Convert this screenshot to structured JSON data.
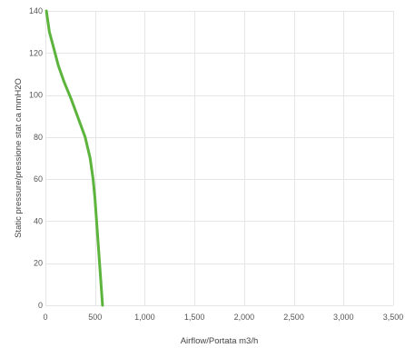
{
  "chart_data": {
    "type": "line",
    "title": "",
    "xlabel": "Airflow/Portata m3/h",
    "ylabel": "Static pressure/pressione stat ca mmH2O",
    "xlim": [
      0,
      3500
    ],
    "ylim": [
      0,
      140
    ],
    "x_ticks": [
      {
        "value": 0,
        "label": "0"
      },
      {
        "value": 500,
        "label": "500"
      },
      {
        "value": 1000,
        "label": "1,000"
      },
      {
        "value": 1500,
        "label": "1,500"
      },
      {
        "value": 2000,
        "label": "2,000"
      },
      {
        "value": 2500,
        "label": "2,500"
      },
      {
        "value": 3000,
        "label": "3,000"
      },
      {
        "value": 3500,
        "label": "3,500"
      }
    ],
    "y_ticks": [
      {
        "value": 0,
        "label": "0"
      },
      {
        "value": 20,
        "label": "20"
      },
      {
        "value": 40,
        "label": "40"
      },
      {
        "value": 60,
        "label": "60"
      },
      {
        "value": 80,
        "label": "80"
      },
      {
        "value": 100,
        "label": "100"
      },
      {
        "value": 120,
        "label": "120"
      },
      {
        "value": 140,
        "label": "140"
      }
    ],
    "grid": true,
    "legend": "none",
    "series": [
      {
        "color": "#5cb43c",
        "x": [
          10,
          40,
          80,
          130,
          190,
          260,
          330,
          400,
          450,
          480,
          500,
          515,
          530,
          545,
          560,
          575
        ],
        "y": [
          140,
          130,
          123,
          114,
          106,
          98,
          89,
          80,
          70,
          60,
          50,
          40,
          30,
          20,
          10,
          0
        ]
      }
    ]
  }
}
